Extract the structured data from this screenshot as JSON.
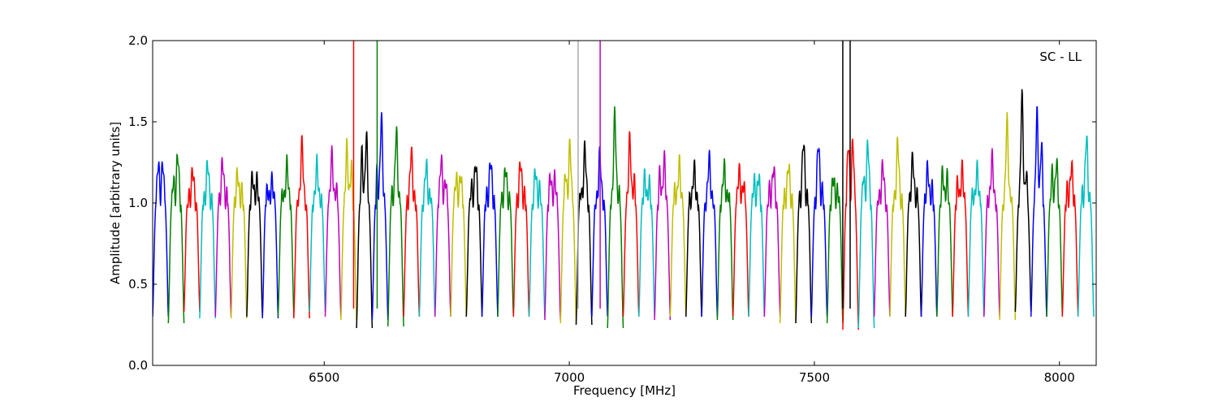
{
  "chart_data": {
    "type": "line",
    "title": "",
    "annotation": "SC - LL",
    "xlabel": "Frequency [MHz]",
    "ylabel": "Amplitude [arbitrary units]",
    "xlim": [
      6150,
      8075
    ],
    "ylim": [
      0.0,
      2.0
    ],
    "xticks": [
      6500,
      7000,
      7500,
      8000
    ],
    "xtick_labels": [
      "6500",
      "7000",
      "7500",
      "8000"
    ],
    "yticks": [
      0.0,
      0.5,
      1.0,
      1.5,
      2.0
    ],
    "ytick_labels": [
      "0.0",
      "0.5",
      "1.0",
      "1.5",
      "2.0"
    ],
    "grid": false,
    "legend": "none",
    "segment_width_mhz": 32,
    "color_cycle": [
      "#0000ff",
      "#008000",
      "#ff0000",
      "#00bfbf",
      "#bf00bf",
      "#bfbf00",
      "#000000"
    ],
    "segment_starts": [
      6150,
      6182,
      6214,
      6246,
      6278,
      6310,
      6342,
      6374,
      6406,
      6438,
      6470,
      6502,
      6534,
      6566,
      6598,
      6630,
      6662,
      6694,
      6726,
      6758,
      6790,
      6822,
      6854,
      6886,
      6918,
      6950,
      6982,
      7014,
      7046,
      7078,
      7110,
      7142,
      7174,
      7206,
      7238,
      7270,
      7302,
      7334,
      7366,
      7398,
      7430,
      7462,
      7494,
      7526,
      7558,
      7590,
      7622,
      7654,
      7686,
      7718,
      7750,
      7782,
      7814,
      7846,
      7878,
      7910,
      7942,
      7974,
      8006,
      8038
    ],
    "segment_peaks": [
      1.42,
      1.38,
      1.22,
      1.25,
      1.27,
      1.22,
      1.25,
      1.18,
      1.27,
      1.37,
      1.25,
      1.33,
      1.47,
      1.58,
      1.6,
      1.45,
      1.32,
      1.26,
      1.35,
      1.28,
      1.3,
      1.28,
      1.22,
      1.27,
      1.25,
      1.27,
      1.46,
      1.37,
      1.3,
      1.56,
      1.45,
      1.23,
      1.37,
      1.28,
      1.22,
      1.28,
      1.25,
      1.27,
      1.25,
      1.26,
      1.25,
      1.39,
      1.4,
      1.2,
      1.62,
      1.46,
      1.25,
      1.38,
      1.29,
      1.26,
      1.28,
      1.28,
      1.23,
      1.28,
      1.51,
      1.73,
      1.76,
      1.36,
      1.27,
      1.42
    ],
    "segment_dips": [
      0.3,
      0.26,
      0.33,
      0.29,
      0.3,
      0.29,
      0.3,
      0.29,
      0.3,
      0.29,
      0.33,
      0.3,
      0.28,
      0.23,
      0.28,
      0.24,
      0.3,
      0.3,
      0.3,
      0.3,
      0.3,
      0.3,
      0.3,
      0.3,
      0.3,
      0.28,
      0.26,
      0.25,
      0.3,
      0.23,
      0.3,
      0.3,
      0.28,
      0.3,
      0.3,
      0.3,
      0.28,
      0.3,
      0.3,
      0.3,
      0.26,
      0.26,
      0.3,
      0.26,
      0.22,
      0.23,
      0.3,
      0.3,
      0.3,
      0.3,
      0.3,
      0.3,
      0.3,
      0.3,
      0.28,
      0.33,
      0.3,
      0.3,
      0.3,
      0.3
    ],
    "rfi_spikes": [
      {
        "x": 6560,
        "color": "#ff0000"
      },
      {
        "x": 6608,
        "color": "#008000"
      },
      {
        "x": 7018,
        "color": "#aaaaaa"
      },
      {
        "x": 7063,
        "color": "#bf00bf"
      },
      {
        "x": 7558,
        "color": "#000000"
      },
      {
        "x": 7573,
        "color": "#000000"
      }
    ]
  }
}
